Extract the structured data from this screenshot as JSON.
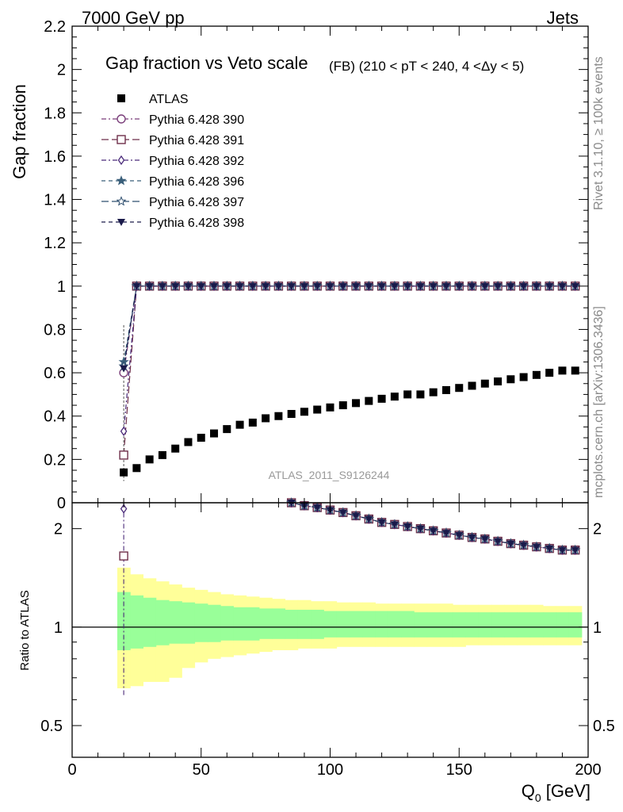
{
  "header": {
    "left": "7000 GeV pp",
    "right": "Jets"
  },
  "side_text": {
    "rivet": "Rivet 3.1.10, ≥ 100k events",
    "mcplots": "mcplots.cern.ch [arXiv:1306.3436]"
  },
  "watermark": "ATLAS_2011_S9126244",
  "chart_data": [
    {
      "type": "scatter",
      "title": "Gap fraction vs Veto scale",
      "subtitle": "(FB) (210 < pT < 240, 4 <Δy < 5)",
      "ylabel": "Gap fraction",
      "xlim": [
        0,
        200
      ],
      "ylim": [
        0,
        2.2
      ],
      "yticks": [
        "0",
        "0.2",
        "0.4",
        "0.6",
        "0.8",
        "1",
        "1.2",
        "1.4",
        "1.6",
        "1.8",
        "2",
        "2.2"
      ],
      "ytick_values": [
        0,
        0.2,
        0.4,
        0.6,
        0.8,
        1,
        1.2,
        1.4,
        1.6,
        1.8,
        2,
        2.2
      ],
      "legend_position": "top-left",
      "x": [
        20,
        25,
        30,
        35,
        40,
        45,
        50,
        55,
        60,
        65,
        70,
        75,
        80,
        85,
        90,
        95,
        100,
        105,
        110,
        115,
        120,
        125,
        130,
        135,
        140,
        145,
        150,
        155,
        160,
        165,
        170,
        175,
        180,
        185,
        190,
        195
      ],
      "series": [
        {
          "name": "ATLAS",
          "color": "#000000",
          "marker": "filled-square",
          "values": [
            0.14,
            0.16,
            0.2,
            0.22,
            0.25,
            0.28,
            0.3,
            0.32,
            0.34,
            0.36,
            0.37,
            0.39,
            0.4,
            0.41,
            0.42,
            0.43,
            0.44,
            0.45,
            0.46,
            0.47,
            0.48,
            0.49,
            0.5,
            0.5,
            0.51,
            0.52,
            0.53,
            0.54,
            0.55,
            0.56,
            0.57,
            0.58,
            0.59,
            0.6,
            0.61,
            0.61
          ]
        },
        {
          "name": "Pythia 6.428 390",
          "color": "#7b3f7b",
          "marker": "open-circle",
          "dash": "dash-dot",
          "first_value": 0.6
        },
        {
          "name": "Pythia 6.428 391",
          "color": "#6e2f4a",
          "marker": "open-square",
          "dash": "long-dash",
          "first_value": 0.22
        },
        {
          "name": "Pythia 6.428 392",
          "color": "#4a2a7a",
          "marker": "open-diamond",
          "dash": "dash-dot",
          "first_value": 0.33
        },
        {
          "name": "Pythia 6.428 396",
          "color": "#3a5f7a",
          "marker": "filled-star",
          "dash": "dash",
          "first_value": 0.65
        },
        {
          "name": "Pythia 6.428 397",
          "color": "#2f4f6f",
          "marker": "open-star",
          "dash": "long-dash",
          "first_value": 0.63
        },
        {
          "name": "Pythia 6.428 398",
          "color": "#1a1a4a",
          "marker": "filled-triangle-down",
          "dash": "dash",
          "first_value": 0.62
        }
      ],
      "mc_value_after_first": 1.0
    },
    {
      "type": "scatter",
      "ylabel": "Ratio to ATLAS",
      "xlabel": "Q0 [GeV]",
      "xlim": [
        0,
        200
      ],
      "ylim": [
        0.4,
        2.4
      ],
      "log_scale_y": true,
      "yticks": [
        "0.5",
        "1",
        "2"
      ],
      "ytick_values": [
        0.5,
        1,
        2
      ],
      "xticks": [
        "0",
        "50",
        "100",
        "150",
        "200"
      ],
      "xtick_values": [
        0,
        50,
        100,
        150,
        200
      ],
      "first_point_ratios": {
        "Pythia 6.428 391": 1.65,
        "Pythia 6.428 392": 2.3
      },
      "x": [
        85,
        90,
        95,
        100,
        105,
        110,
        115,
        120,
        125,
        130,
        135,
        140,
        145,
        150,
        155,
        160,
        165,
        170,
        175,
        180,
        185,
        190,
        195
      ],
      "mc_ratio": [
        2.4,
        2.35,
        2.32,
        2.28,
        2.24,
        2.19,
        2.14,
        2.09,
        2.06,
        2.03,
        2.0,
        1.97,
        1.94,
        1.91,
        1.88,
        1.86,
        1.83,
        1.8,
        1.78,
        1.76,
        1.74,
        1.72,
        1.72
      ],
      "band_x_edges": [
        17.5,
        22.5,
        27.5,
        32.5,
        37.5,
        42.5,
        47.5,
        52.5,
        57.5,
        62.5,
        67.5,
        72.5,
        77.5,
        82.5,
        87.5,
        92.5,
        97.5,
        102.5,
        107.5,
        112.5,
        117.5,
        122.5,
        127.5,
        132.5,
        137.5,
        142.5,
        147.5,
        152.5,
        157.5,
        162.5,
        167.5,
        172.5,
        177.5,
        182.5,
        187.5,
        192.5,
        197.5
      ],
      "stat_band": [
        [
          0.85,
          1.28
        ],
        [
          0.86,
          1.25
        ],
        [
          0.87,
          1.23
        ],
        [
          0.88,
          1.21
        ],
        [
          0.89,
          1.2
        ],
        [
          0.89,
          1.19
        ],
        [
          0.9,
          1.18
        ],
        [
          0.9,
          1.17
        ],
        [
          0.91,
          1.16
        ],
        [
          0.91,
          1.15
        ],
        [
          0.91,
          1.15
        ],
        [
          0.92,
          1.14
        ],
        [
          0.92,
          1.14
        ],
        [
          0.92,
          1.13
        ],
        [
          0.92,
          1.13
        ],
        [
          0.92,
          1.13
        ],
        [
          0.93,
          1.12
        ],
        [
          0.93,
          1.12
        ],
        [
          0.93,
          1.12
        ],
        [
          0.93,
          1.12
        ],
        [
          0.93,
          1.12
        ],
        [
          0.93,
          1.12
        ],
        [
          0.93,
          1.12
        ],
        [
          0.93,
          1.11
        ],
        [
          0.93,
          1.11
        ],
        [
          0.93,
          1.11
        ],
        [
          0.93,
          1.11
        ],
        [
          0.93,
          1.11
        ],
        [
          0.93,
          1.11
        ],
        [
          0.93,
          1.11
        ],
        [
          0.93,
          1.11
        ],
        [
          0.93,
          1.11
        ],
        [
          0.93,
          1.11
        ],
        [
          0.93,
          1.11
        ],
        [
          0.93,
          1.11
        ],
        [
          0.93,
          1.11
        ]
      ],
      "total_band": [
        [
          0.65,
          1.52
        ],
        [
          0.66,
          1.45
        ],
        [
          0.68,
          1.41
        ],
        [
          0.68,
          1.38
        ],
        [
          0.7,
          1.35
        ],
        [
          0.75,
          1.32
        ],
        [
          0.78,
          1.3
        ],
        [
          0.8,
          1.28
        ],
        [
          0.81,
          1.26
        ],
        [
          0.82,
          1.25
        ],
        [
          0.83,
          1.24
        ],
        [
          0.84,
          1.23
        ],
        [
          0.85,
          1.22
        ],
        [
          0.85,
          1.21
        ],
        [
          0.86,
          1.21
        ],
        [
          0.86,
          1.2
        ],
        [
          0.86,
          1.2
        ],
        [
          0.87,
          1.19
        ],
        [
          0.87,
          1.19
        ],
        [
          0.87,
          1.19
        ],
        [
          0.87,
          1.18
        ],
        [
          0.87,
          1.18
        ],
        [
          0.87,
          1.18
        ],
        [
          0.87,
          1.18
        ],
        [
          0.87,
          1.18
        ],
        [
          0.87,
          1.18
        ],
        [
          0.87,
          1.17
        ],
        [
          0.88,
          1.17
        ],
        [
          0.88,
          1.17
        ],
        [
          0.88,
          1.17
        ],
        [
          0.88,
          1.17
        ],
        [
          0.88,
          1.17
        ],
        [
          0.88,
          1.17
        ],
        [
          0.88,
          1.16
        ],
        [
          0.88,
          1.16
        ],
        [
          0.88,
          1.16
        ]
      ],
      "colors": {
        "stat_band": "#99ff99",
        "total_band": "#ffff99"
      }
    }
  ]
}
